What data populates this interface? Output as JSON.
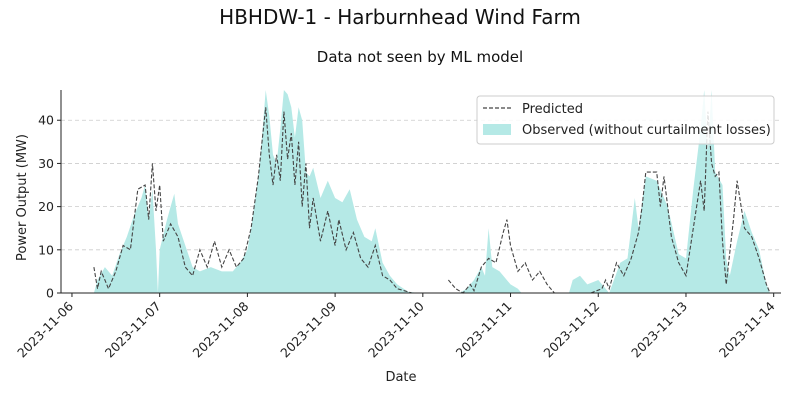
{
  "title": "HBHDW-1 - Harburnhead Wind Farm",
  "subtitle": "Data not seen by ML model",
  "colors": {
    "observed_fill": "#b5e9e6",
    "predicted_line": "#444444",
    "grid": "#cccccc",
    "axis": "#222222"
  },
  "chart_data": {
    "type": "area",
    "xlabel": "Date",
    "ylabel": "Power Output (MW)",
    "xlim": [
      "2023-11-05 21:00",
      "2023-11-14 02:00"
    ],
    "ylim": [
      0,
      47
    ],
    "x_ticks": [
      "2023-11-06",
      "2023-11-07",
      "2023-11-08",
      "2023-11-09",
      "2023-11-10",
      "2023-11-11",
      "2023-11-12",
      "2023-11-13",
      "2023-11-14"
    ],
    "y_ticks": [
      0,
      10,
      20,
      30,
      40
    ],
    "grid": "horizontal dashed",
    "legend_position": "top-right",
    "legend": [
      "Predicted",
      "Observed (without curtailment losses)"
    ],
    "series": [
      {
        "name": "Observed (without curtailment losses)",
        "style": "area",
        "points": [
          [
            "2023-11-06 06:00",
            0
          ],
          [
            "2023-11-06 07:00",
            3
          ],
          [
            "2023-11-06 09:00",
            6
          ],
          [
            "2023-11-06 11:00",
            4
          ],
          [
            "2023-11-06 13:00",
            9
          ],
          [
            "2023-11-06 15:00",
            13
          ],
          [
            "2023-11-06 17:00",
            18
          ],
          [
            "2023-11-06 19:00",
            22
          ],
          [
            "2023-11-06 20:00",
            25
          ],
          [
            "2023-11-06 21:00",
            17
          ],
          [
            "2023-11-06 22:00",
            24
          ],
          [
            "2023-11-06 23:00",
            10
          ],
          [
            "2023-11-06 23:30",
            0
          ],
          [
            "2023-11-07 00:00",
            10
          ],
          [
            "2023-11-07 02:00",
            17
          ],
          [
            "2023-11-07 03:00",
            20
          ],
          [
            "2023-11-07 04:00",
            23
          ],
          [
            "2023-11-07 05:00",
            16
          ],
          [
            "2023-11-07 07:00",
            11
          ],
          [
            "2023-11-07 09:00",
            6
          ],
          [
            "2023-11-07 11:00",
            5
          ],
          [
            "2023-11-07 14:00",
            6
          ],
          [
            "2023-11-07 17:00",
            5
          ],
          [
            "2023-11-07 20:00",
            5
          ],
          [
            "2023-11-07 22:00",
            7
          ],
          [
            "2023-11-08 00:00",
            10
          ],
          [
            "2023-11-08 01:00",
            15
          ],
          [
            "2023-11-08 03:00",
            27
          ],
          [
            "2023-11-08 04:00",
            36
          ],
          [
            "2023-11-08 05:00",
            47
          ],
          [
            "2023-11-08 06:00",
            41
          ],
          [
            "2023-11-08 07:00",
            32
          ],
          [
            "2023-11-08 08:00",
            30
          ],
          [
            "2023-11-08 09:00",
            38
          ],
          [
            "2023-11-08 10:00",
            47
          ],
          [
            "2023-11-08 11:00",
            46
          ],
          [
            "2023-11-08 12:00",
            43
          ],
          [
            "2023-11-08 13:00",
            36
          ],
          [
            "2023-11-08 14:00",
            43
          ],
          [
            "2023-11-08 15:00",
            40
          ],
          [
            "2023-11-08 16:00",
            28
          ],
          [
            "2023-11-08 17:00",
            27
          ],
          [
            "2023-11-08 18:00",
            29
          ],
          [
            "2023-11-08 20:00",
            22
          ],
          [
            "2023-11-08 22:00",
            26
          ],
          [
            "2023-11-09 00:00",
            22
          ],
          [
            "2023-11-09 02:00",
            21
          ],
          [
            "2023-11-09 04:00",
            24
          ],
          [
            "2023-11-09 06:00",
            17
          ],
          [
            "2023-11-09 08:00",
            13
          ],
          [
            "2023-11-09 10:00",
            12
          ],
          [
            "2023-11-09 11:00",
            15
          ],
          [
            "2023-11-09 13:00",
            7
          ],
          [
            "2023-11-09 15:00",
            4
          ],
          [
            "2023-11-09 17:00",
            2
          ],
          [
            "2023-11-09 20:00",
            0.3
          ],
          [
            "2023-11-09 23:00",
            0
          ],
          [
            "2023-11-10 10:00",
            0
          ],
          [
            "2023-11-10 12:00",
            1
          ],
          [
            "2023-11-10 14:00",
            3
          ],
          [
            "2023-11-10 16:00",
            6
          ],
          [
            "2023-11-10 17:00",
            4
          ],
          [
            "2023-11-10 18:00",
            15
          ],
          [
            "2023-11-10 19:00",
            6
          ],
          [
            "2023-11-10 21:00",
            5
          ],
          [
            "2023-11-11 00:00",
            2
          ],
          [
            "2023-11-11 02:00",
            1
          ],
          [
            "2023-11-11 03:00",
            0
          ],
          [
            "2023-11-11 16:00",
            0
          ],
          [
            "2023-11-11 17:00",
            3
          ],
          [
            "2023-11-11 19:00",
            4
          ],
          [
            "2023-11-11 21:00",
            2
          ],
          [
            "2023-11-12 00:00",
            3
          ],
          [
            "2023-11-12 03:00",
            0
          ],
          [
            "2023-11-12 06:00",
            7
          ],
          [
            "2023-11-12 08:00",
            8
          ],
          [
            "2023-11-12 10:00",
            22
          ],
          [
            "2023-11-12 11:00",
            15
          ],
          [
            "2023-11-12 13:00",
            27
          ],
          [
            "2023-11-12 16:00",
            26
          ],
          [
            "2023-11-12 19:00",
            20
          ],
          [
            "2023-11-12 22:00",
            9
          ],
          [
            "2023-11-13 00:00",
            8
          ],
          [
            "2023-11-13 02:00",
            24
          ],
          [
            "2023-11-13 04:00",
            38
          ],
          [
            "2023-11-13 05:00",
            47
          ],
          [
            "2023-11-13 06:00",
            33
          ],
          [
            "2023-11-13 07:00",
            47
          ],
          [
            "2023-11-13 08:00",
            28
          ],
          [
            "2023-11-13 10:00",
            25
          ],
          [
            "2023-11-13 11:00",
            8
          ],
          [
            "2023-11-13 12:00",
            4
          ],
          [
            "2023-11-13 14:00",
            12
          ],
          [
            "2023-11-13 16:00",
            19
          ],
          [
            "2023-11-13 18:00",
            14
          ],
          [
            "2023-11-13 20:00",
            10
          ],
          [
            "2023-11-13 22:00",
            2
          ],
          [
            "2023-11-13 23:00",
            0
          ]
        ]
      },
      {
        "name": "Predicted",
        "style": "dashed line",
        "segments": [
          [
            [
              "2023-11-06 06:00",
              6
            ],
            [
              "2023-11-06 07:00",
              1
            ],
            [
              "2023-11-06 08:00",
              5
            ],
            [
              "2023-11-06 09:00",
              3
            ],
            [
              "2023-11-06 10:00",
              1
            ],
            [
              "2023-11-06 12:00",
              5
            ],
            [
              "2023-11-06 14:00",
              11
            ],
            [
              "2023-11-06 16:00",
              10
            ],
            [
              "2023-11-06 18:00",
              24
            ],
            [
              "2023-11-06 20:00",
              25
            ],
            [
              "2023-11-06 21:00",
              17
            ],
            [
              "2023-11-06 22:00",
              30
            ],
            [
              "2023-11-06 23:00",
              19
            ],
            [
              "2023-11-07 00:00",
              25
            ],
            [
              "2023-11-07 01:00",
              12
            ],
            [
              "2023-11-07 03:00",
              16
            ],
            [
              "2023-11-07 05:00",
              13
            ],
            [
              "2023-11-07 07:00",
              6
            ],
            [
              "2023-11-07 09:00",
              4
            ],
            [
              "2023-11-07 11:00",
              10
            ],
            [
              "2023-11-07 13:00",
              6
            ],
            [
              "2023-11-07 15:00",
              12
            ],
            [
              "2023-11-07 17:00",
              6
            ],
            [
              "2023-11-07 19:00",
              10
            ],
            [
              "2023-11-07 21:00",
              6
            ],
            [
              "2023-11-07 23:00",
              8
            ],
            [
              "2023-11-08 01:00",
              15
            ],
            [
              "2023-11-08 03:00",
              27
            ],
            [
              "2023-11-08 04:00",
              35
            ],
            [
              "2023-11-08 05:00",
              43
            ],
            [
              "2023-11-08 06:00",
              32
            ],
            [
              "2023-11-08 07:00",
              25
            ],
            [
              "2023-11-08 08:00",
              32
            ],
            [
              "2023-11-08 09:00",
              26
            ],
            [
              "2023-11-08 10:00",
              42
            ],
            [
              "2023-11-08 11:00",
              31
            ],
            [
              "2023-11-08 12:00",
              37
            ],
            [
              "2023-11-08 13:00",
              25
            ],
            [
              "2023-11-08 14:00",
              35
            ],
            [
              "2023-11-08 15:00",
              20
            ],
            [
              "2023-11-08 16:00",
              30
            ],
            [
              "2023-11-08 17:00",
              15
            ],
            [
              "2023-11-08 18:00",
              22
            ],
            [
              "2023-11-08 20:00",
              12
            ],
            [
              "2023-11-08 22:00",
              19
            ],
            [
              "2023-11-09 00:00",
              11
            ],
            [
              "2023-11-09 01:00",
              17
            ],
            [
              "2023-11-09 03:00",
              10
            ],
            [
              "2023-11-09 05:00",
              14
            ],
            [
              "2023-11-09 07:00",
              8
            ],
            [
              "2023-11-09 09:00",
              6
            ],
            [
              "2023-11-09 11:00",
              11
            ],
            [
              "2023-11-09 13:00",
              4
            ],
            [
              "2023-11-09 15:00",
              3
            ],
            [
              "2023-11-09 17:00",
              1
            ],
            [
              "2023-11-09 19:00",
              0.5
            ],
            [
              "2023-11-09 21:00",
              0
            ]
          ],
          [
            [
              "2023-11-10 07:00",
              3
            ],
            [
              "2023-11-10 09:00",
              1
            ],
            [
              "2023-11-10 11:00",
              0
            ],
            [
              "2023-11-10 13:00",
              2
            ],
            [
              "2023-11-10 14:00",
              0.5
            ],
            [
              "2023-11-10 16:00",
              6
            ],
            [
              "2023-11-10 18:00",
              8
            ],
            [
              "2023-11-10 20:00",
              7
            ],
            [
              "2023-11-10 22:00",
              14
            ],
            [
              "2023-11-10 23:00",
              17
            ],
            [
              "2023-11-11 00:00",
              11
            ],
            [
              "2023-11-11 02:00",
              5
            ],
            [
              "2023-11-11 04:00",
              7
            ],
            [
              "2023-11-11 06:00",
              3
            ],
            [
              "2023-11-11 08:00",
              5
            ],
            [
              "2023-11-11 10:00",
              2
            ],
            [
              "2023-11-11 12:00",
              0
            ]
          ],
          [
            [
              "2023-11-11 22:00",
              0
            ],
            [
              "2023-11-12 01:00",
              1
            ],
            [
              "2023-11-12 02:00",
              3
            ],
            [
              "2023-11-12 03:00",
              1
            ],
            [
              "2023-11-12 05:00",
              7
            ],
            [
              "2023-11-12 07:00",
              4
            ],
            [
              "2023-11-12 09:00",
              8
            ],
            [
              "2023-11-12 11:00",
              14
            ],
            [
              "2023-11-12 12:00",
              20
            ],
            [
              "2023-11-12 13:00",
              28
            ],
            [
              "2023-11-12 16:00",
              28
            ],
            [
              "2023-11-12 17:00",
              20
            ],
            [
              "2023-11-12 18:00",
              27
            ],
            [
              "2023-11-12 20:00",
              13
            ],
            [
              "2023-11-12 22:00",
              7
            ],
            [
              "2023-11-13 00:00",
              4
            ],
            [
              "2023-11-13 02:00",
              15
            ],
            [
              "2023-11-13 04:00",
              26
            ],
            [
              "2023-11-13 05:00",
              19
            ],
            [
              "2023-11-13 06:00",
              42
            ],
            [
              "2023-11-13 07:00",
              30
            ],
            [
              "2023-11-13 08:00",
              27
            ],
            [
              "2023-11-13 09:00",
              28
            ],
            [
              "2023-11-13 10:00",
              12
            ],
            [
              "2023-11-13 11:00",
              2
            ],
            [
              "2023-11-13 13:00",
              17
            ],
            [
              "2023-11-13 14:00",
              26
            ],
            [
              "2023-11-13 16:00",
              15
            ],
            [
              "2023-11-13 18:00",
              13
            ],
            [
              "2023-11-13 20:00",
              8
            ],
            [
              "2023-11-13 22:00",
              2
            ],
            [
              "2023-11-13 23:00",
              0
            ]
          ]
        ]
      }
    ]
  }
}
